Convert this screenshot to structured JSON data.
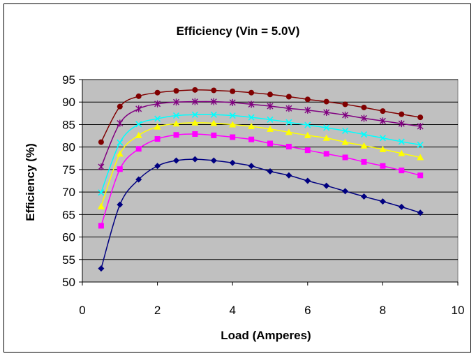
{
  "chart_data": {
    "type": "line",
    "title": "Efficiency (Vin = 5.0V)",
    "xlabel": "Load (Amperes)",
    "ylabel": "Efficiency (%)",
    "xlim": [
      0,
      10
    ],
    "ylim": [
      50,
      95
    ],
    "xticks": [
      0,
      2,
      4,
      6,
      8,
      10
    ],
    "yticks": [
      50,
      55,
      60,
      65,
      70,
      75,
      80,
      85,
      90,
      95
    ],
    "grid": "horizontal",
    "plot_background": "#c0c0c0",
    "x": [
      0.5,
      1.0,
      1.5,
      2.0,
      2.5,
      3.0,
      3.5,
      4.0,
      4.5,
      5.0,
      5.5,
      6.0,
      6.5,
      7.0,
      7.5,
      8.0,
      8.5,
      9.0
    ],
    "series": [
      {
        "color": "#000080",
        "marker": "diamond",
        "values": [
          53.0,
          67.2,
          72.8,
          75.8,
          77.0,
          77.3,
          77.0,
          76.5,
          75.8,
          74.6,
          73.7,
          72.5,
          71.4,
          70.2,
          69.0,
          67.9,
          66.7,
          65.4
        ]
      },
      {
        "color": "#ff00ff",
        "marker": "square",
        "values": [
          62.5,
          75.1,
          79.6,
          81.8,
          82.7,
          82.9,
          82.6,
          82.2,
          81.7,
          80.8,
          80.1,
          79.3,
          78.5,
          77.7,
          76.7,
          75.8,
          74.8,
          73.7
        ]
      },
      {
        "color": "#ffff00",
        "marker": "triangle",
        "values": [
          66.8,
          78.5,
          82.6,
          84.5,
          85.2,
          85.4,
          85.3,
          85.0,
          84.6,
          84.0,
          83.3,
          82.6,
          82.0,
          81.1,
          80.3,
          79.5,
          78.6,
          77.7
        ]
      },
      {
        "color": "#00ffff",
        "marker": "x",
        "values": [
          69.9,
          81.0,
          85.1,
          86.3,
          87.0,
          87.2,
          87.2,
          87.0,
          86.6,
          86.1,
          85.5,
          84.9,
          84.3,
          83.6,
          82.8,
          82.0,
          81.2,
          80.5
        ]
      },
      {
        "color": "#800080",
        "marker": "star",
        "values": [
          75.6,
          85.3,
          88.5,
          89.6,
          90.0,
          90.1,
          90.1,
          89.9,
          89.5,
          89.1,
          88.6,
          88.2,
          87.7,
          87.1,
          86.4,
          85.8,
          85.2,
          84.6
        ]
      },
      {
        "color": "#800000",
        "marker": "circle",
        "values": [
          81.1,
          89.0,
          91.3,
          92.1,
          92.5,
          92.7,
          92.6,
          92.4,
          92.1,
          91.7,
          91.2,
          90.6,
          90.1,
          89.5,
          88.8,
          88.0,
          87.3,
          86.6
        ]
      }
    ]
  }
}
